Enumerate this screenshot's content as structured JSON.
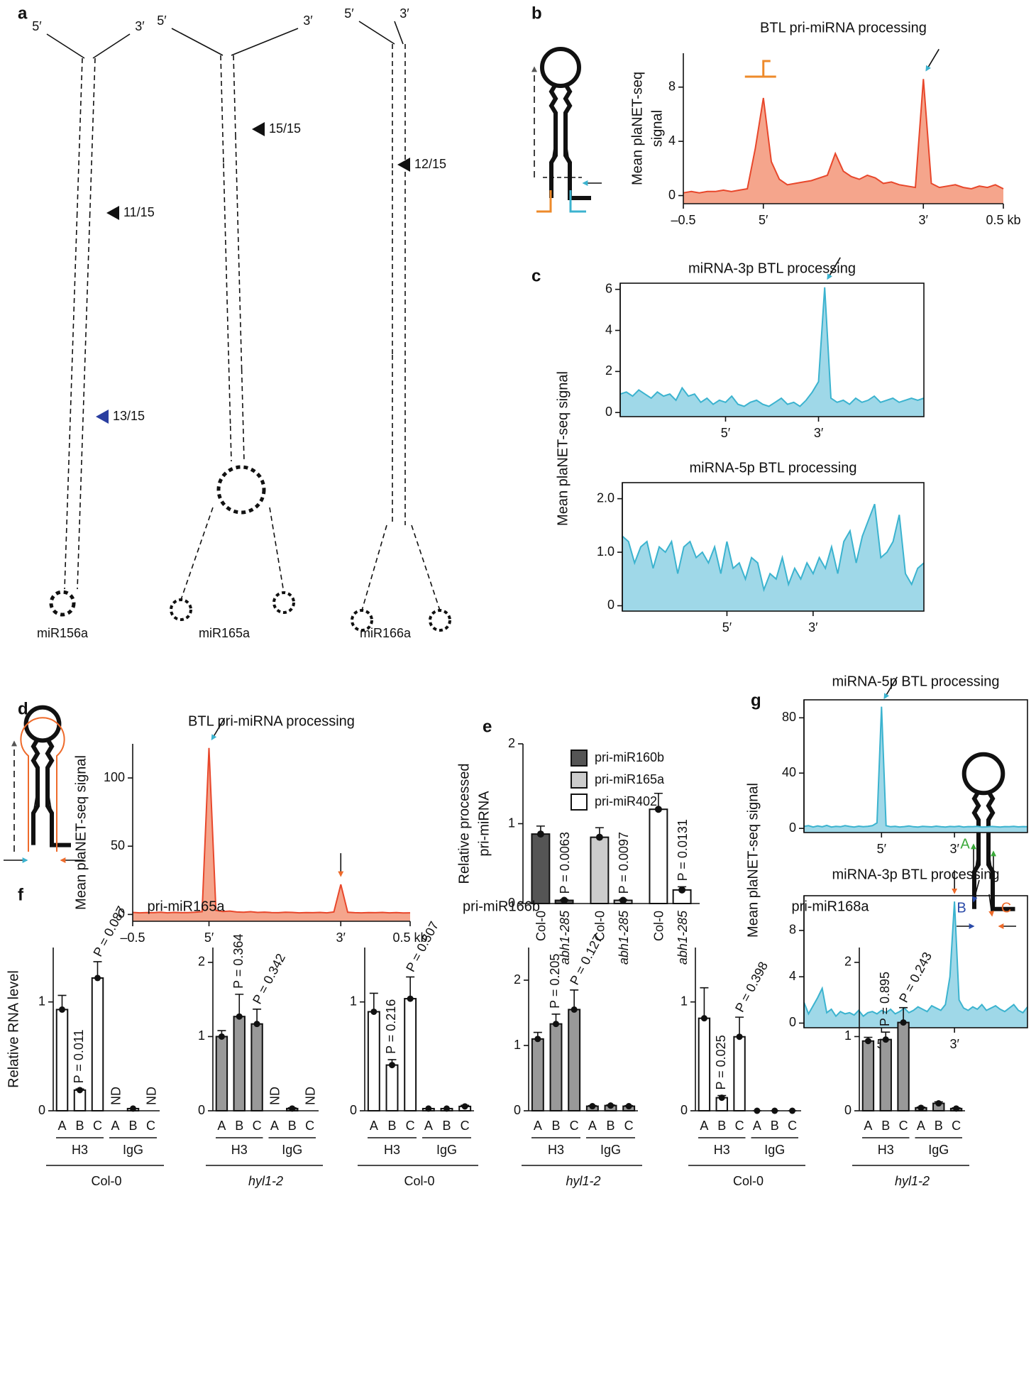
{
  "panel_labels": [
    "a",
    "b",
    "c",
    "d",
    "e",
    "f",
    "g"
  ],
  "structures": [
    {
      "name": "miR156a",
      "five_prime": "5′",
      "three_prime": "3′",
      "sites": [
        "11/15",
        "13/15"
      ]
    },
    {
      "name": "miR165a",
      "five_prime": "5′",
      "three_prime": "3′",
      "sites": [
        "15/15"
      ]
    },
    {
      "name": "miR166a",
      "five_prime": "5′",
      "three_prime": "3′",
      "sites": [
        "12/15"
      ]
    }
  ],
  "shared_ylabels": {
    "c": "Mean plaNET-seq signal",
    "g": "Mean plaNET-seq signal"
  },
  "schematic_f": {
    "primers": [
      "A",
      "B",
      "C"
    ]
  },
  "chart_data": [
    {
      "type": "area",
      "title": "BTL pri-miRNA processing",
      "ylabel": [
        "Mean plaNET-seq",
        "signal"
      ],
      "x": [
        -0.5,
        -0.475,
        -0.45,
        -0.425,
        -0.4,
        -0.375,
        -0.35,
        -0.325,
        -0.3,
        -0.275,
        -0.25,
        -0.225,
        -0.2,
        -0.175,
        -0.15,
        -0.125,
        -0.1,
        -0.075,
        -0.05,
        -0.025,
        0,
        0.025,
        0.05,
        0.075,
        0.1,
        0.125,
        0.15,
        0.175,
        0.2,
        0.225,
        0.25,
        0.275,
        0.3,
        0.325,
        0.35,
        0.375,
        0.4,
        0.425,
        0.45,
        0.475,
        0.5
      ],
      "values": [
        0.2,
        0.3,
        0.2,
        0.3,
        0.3,
        0.4,
        0.3,
        0.4,
        0.5,
        3.5,
        7.2,
        2.5,
        1.2,
        0.8,
        0.9,
        1.0,
        1.1,
        1.3,
        1.5,
        3.1,
        1.8,
        1.4,
        1.2,
        1.5,
        1.3,
        0.9,
        1.0,
        0.8,
        0.7,
        0.6,
        8.6,
        0.9,
        0.6,
        0.7,
        0.8,
        0.6,
        0.5,
        0.7,
        0.6,
        0.8,
        0.5
      ],
      "xlim": [
        -0.5,
        0.5
      ],
      "xticks": [
        {
          "value": -0.5,
          "label": "–0.5"
        },
        {
          "value": -0.25,
          "label": "5′"
        },
        {
          "value": 0.25,
          "label": "3′"
        },
        {
          "value": 0.5,
          "label": "0.5 kb"
        }
      ],
      "ylim": [
        -0.6,
        10.5
      ],
      "yticks": [
        0,
        4,
        8
      ],
      "color": "#e8472b",
      "fill": "#f5a58c",
      "frame": false
    },
    {
      "type": "area",
      "title": "miRNA-3p BTL processing",
      "values": [
        0.9,
        1.0,
        0.8,
        1.1,
        0.9,
        0.7,
        1.0,
        0.8,
        0.9,
        0.6,
        1.2,
        0.8,
        0.9,
        0.5,
        0.7,
        0.4,
        0.6,
        0.5,
        0.8,
        0.4,
        0.3,
        0.5,
        0.6,
        0.4,
        0.3,
        0.5,
        0.7,
        0.4,
        0.5,
        0.3,
        0.6,
        1.0,
        1.5,
        6.1,
        0.7,
        0.5,
        0.6,
        0.4,
        0.7,
        0.5,
        0.6,
        0.8,
        0.5,
        0.6,
        0.7,
        0.5,
        0.6,
        0.7,
        0.6,
        0.7
      ],
      "xticks": [
        {
          "value": 17,
          "label": "5′"
        },
        {
          "value": 32,
          "label": "3′"
        }
      ],
      "ylim": [
        -0.2,
        6.3
      ],
      "yticks": [
        0,
        2,
        4,
        6
      ],
      "color": "#3bb3cf",
      "fill": "#9fd8e8",
      "frame": true
    },
    {
      "type": "area",
      "title": "miRNA-5p BTL processing",
      "values": [
        1.3,
        1.2,
        0.8,
        1.1,
        1.2,
        0.7,
        1.1,
        1.0,
        1.2,
        0.6,
        1.1,
        1.2,
        0.9,
        1.0,
        0.8,
        1.1,
        0.6,
        1.2,
        0.7,
        0.8,
        0.5,
        0.9,
        0.8,
        0.3,
        0.6,
        0.5,
        0.9,
        0.4,
        0.7,
        0.5,
        0.8,
        0.6,
        0.9,
        0.7,
        1.1,
        0.6,
        1.2,
        1.4,
        0.8,
        1.3,
        1.6,
        1.9,
        0.9,
        1.0,
        1.2,
        1.7,
        0.6,
        0.4,
        0.7,
        0.8
      ],
      "xticks": [
        {
          "value": 17,
          "label": "5′"
        },
        {
          "value": 31,
          "label": "3′"
        }
      ],
      "ylim": [
        -0.1,
        2.3
      ],
      "yticks": [
        0,
        {
          "value": 1,
          "label": "1.0"
        },
        {
          "value": 2,
          "label": "2.0"
        }
      ],
      "color": "#3bb3cf",
      "fill": "#9fd8e8",
      "frame": true
    },
    {
      "type": "area",
      "title": "BTL pri-miRNA processing",
      "ylabel": [
        "Mean plaNET-seq signal"
      ],
      "x": [
        -0.5,
        -0.475,
        -0.45,
        -0.425,
        -0.4,
        -0.375,
        -0.35,
        -0.325,
        -0.3,
        -0.275,
        -0.25,
        -0.225,
        -0.2,
        -0.175,
        -0.15,
        -0.125,
        -0.1,
        -0.075,
        -0.05,
        -0.025,
        0,
        0.025,
        0.05,
        0.075,
        0.1,
        0.125,
        0.15,
        0.175,
        0.2,
        0.225,
        0.25,
        0.275,
        0.3,
        0.325,
        0.35,
        0.375,
        0.4,
        0.425,
        0.45,
        0.475,
        0.5
      ],
      "values": [
        1.5,
        1.2,
        1.4,
        1.3,
        1.6,
        1.2,
        1.5,
        1.3,
        1.4,
        1.6,
        2.0,
        122,
        3.0,
        2.2,
        2.5,
        1.8,
        1.6,
        2.0,
        1.5,
        1.7,
        1.4,
        1.3,
        1.6,
        1.5,
        1.2,
        1.4,
        1.3,
        1.5,
        1.2,
        1.8,
        22,
        1.6,
        1.3,
        1.2,
        1.4,
        1.3,
        1.5,
        1.2,
        1.4,
        1.1,
        1.2
      ],
      "xlim": [
        -0.5,
        0.5
      ],
      "xticks": [
        {
          "value": -0.5,
          "label": "–0.5"
        },
        {
          "value": -0.225,
          "label": "5′"
        },
        {
          "value": 0.25,
          "label": "3′"
        },
        {
          "value": 0.5,
          "label": "0.5 kb"
        }
      ],
      "ylim": [
        -5,
        125
      ],
      "yticks": [
        0,
        50,
        100
      ],
      "color": "#e8472b",
      "fill": "#f5a58c",
      "frame": false
    },
    {
      "type": "area",
      "title": "miRNA-5p BTL processing",
      "values": [
        1.5,
        2,
        1,
        1.8,
        1.2,
        2.2,
        1,
        1.5,
        1.2,
        2,
        1.4,
        1,
        1.6,
        1.2,
        1.5,
        2,
        4,
        88,
        2,
        1.2,
        1.5,
        1,
        1.3,
        1.8,
        1.2,
        1,
        1.5,
        1.3,
        1.1,
        1.6,
        1.2,
        1,
        1.4,
        1.2,
        1.6,
        1,
        1.3,
        1.2,
        1.5,
        1,
        1.1,
        1.4,
        1.2,
        1,
        1.3,
        1.2,
        1.5,
        1.1,
        1.3,
        1.2
      ],
      "xticks": [
        {
          "value": 17,
          "label": "5′"
        },
        {
          "value": 33,
          "label": "3′"
        }
      ],
      "ylim": [
        -3,
        93
      ],
      "yticks": [
        0,
        40,
        80
      ],
      "color": "#3bb3cf",
      "fill": "#9fd8e8",
      "frame": true
    },
    {
      "type": "area",
      "title": "miRNA-3p BTL processing",
      "values": [
        1.8,
        0.8,
        1.5,
        2.2,
        3.0,
        0.9,
        1.2,
        0.6,
        1.0,
        0.8,
        0.9,
        0.7,
        1.1,
        0.6,
        0.9,
        1.0,
        0.8,
        1.1,
        0.9,
        1.2,
        0.8,
        1.0,
        1.3,
        0.9,
        1.1,
        1.4,
        1.2,
        1.0,
        1.5,
        1.3,
        1.1,
        1.6,
        4.0,
        10.5,
        2.0,
        1.3,
        1.1,
        1.4,
        1.2,
        1.6,
        1.1,
        1.3,
        1.5,
        1.2,
        1.0,
        1.3,
        1.6,
        1.1,
        0.9,
        1.4
      ],
      "xticks": [
        {
          "value": 17,
          "label": "5′"
        },
        {
          "value": 33,
          "label": "3′"
        }
      ],
      "ylim": [
        -0.4,
        11
      ],
      "yticks": [
        0,
        4,
        8
      ],
      "color": "#3bb3cf",
      "fill": "#9fd8e8",
      "frame": true
    },
    {
      "type": "grouped_bar",
      "ylabel": [
        "Relative processed",
        "pri-miRNA"
      ],
      "categories": [
        "Col-0",
        "abh1-285"
      ],
      "series": [
        {
          "name": "pri-miR160b",
          "color": "#555555",
          "values": [
            0.87,
            0.04
          ],
          "errors": [
            0.1,
            0.01
          ],
          "p_label": "P = 0.0063"
        },
        {
          "name": "pri-miR165a",
          "color": "#cccccc",
          "values": [
            0.83,
            0.04
          ],
          "errors": [
            0.12,
            0.01
          ],
          "p_label": "P = 0.0097"
        },
        {
          "name": "pri-miR402",
          "color": "#ffffff",
          "values": [
            1.18,
            0.17
          ],
          "errors": [
            0.2,
            0.04
          ],
          "p_label": "P = 0.0131"
        }
      ],
      "ylim": [
        0,
        2
      ],
      "yticks": [
        0,
        1,
        2
      ],
      "legend": "top-right"
    },
    {
      "type": "bar",
      "title": "pri-miR165a",
      "ylabel": "Relative RNA level",
      "categories": [
        "A",
        "B",
        "C",
        "A",
        "B",
        "C"
      ],
      "groups": [
        "H3",
        "IgG"
      ],
      "genotype": "Col-0",
      "values": [
        0.93,
        0.19,
        1.22,
        null,
        0.02,
        null
      ],
      "errors": [
        0.13,
        0.01,
        0.15,
        null,
        0,
        null
      ],
      "value_labels": [
        null,
        null,
        null,
        "ND",
        null,
        "ND"
      ],
      "p_labels": [
        null,
        "P = 0.011",
        "P = 0.087",
        null,
        null,
        null
      ],
      "color": "#ffffff",
      "ylim": [
        0,
        1.5
      ],
      "yticks": [
        0,
        1
      ]
    },
    {
      "type": "bar",
      "categories": [
        "A",
        "B",
        "C",
        "A",
        "B",
        "C"
      ],
      "groups": [
        "H3",
        "IgG"
      ],
      "genotype": "hyl1-2",
      "values": [
        1.0,
        1.27,
        1.17,
        null,
        0.03,
        null
      ],
      "errors": [
        0.08,
        0.3,
        0.2,
        null,
        0.01,
        null
      ],
      "value_labels": [
        null,
        null,
        null,
        "ND",
        null,
        "ND"
      ],
      "p_labels": [
        null,
        "P = 0.364",
        "P = 0.342",
        null,
        null,
        null
      ],
      "color": "#999999",
      "ylim": [
        0,
        2.2
      ],
      "yticks": [
        0,
        1,
        2
      ]
    },
    {
      "type": "bar",
      "title": "pri-miR166b",
      "categories": [
        "A",
        "B",
        "C",
        "A",
        "B",
        "C"
      ],
      "groups": [
        "H3",
        "IgG"
      ],
      "genotype": "Col-0",
      "values": [
        0.91,
        0.42,
        1.03,
        0.02,
        0.02,
        0.04
      ],
      "errors": [
        0.17,
        0.05,
        0.2,
        0,
        0,
        0.01
      ],
      "p_labels": [
        null,
        "P = 0.216",
        "P = 0.507",
        null,
        null,
        null
      ],
      "color": "#ffffff",
      "ylim": [
        0,
        1.5
      ],
      "yticks": [
        0,
        1
      ]
    },
    {
      "type": "bar",
      "categories": [
        "A",
        "B",
        "C",
        "A",
        "B",
        "C"
      ],
      "groups": [
        "H3",
        "IgG"
      ],
      "genotype": "hyl1-2",
      "values": [
        1.1,
        1.33,
        1.55,
        0.07,
        0.08,
        0.07
      ],
      "errors": [
        0.1,
        0.15,
        0.3,
        0.01,
        0.01,
        0.01
      ],
      "p_labels": [
        null,
        "P = 0.205",
        "P = 0.127",
        null,
        null,
        null
      ],
      "color": "#999999",
      "ylim": [
        0,
        2.5
      ],
      "yticks": [
        0,
        1,
        2
      ]
    },
    {
      "type": "bar",
      "title": "pri-miR168a",
      "categories": [
        "A",
        "B",
        "C",
        "A",
        "B",
        "C"
      ],
      "groups": [
        "H3",
        "IgG"
      ],
      "genotype": "Col-0",
      "values": [
        0.85,
        0.12,
        0.68,
        0,
        0,
        0
      ],
      "errors": [
        0.28,
        0.02,
        0.18,
        0,
        0,
        0
      ],
      "p_labels": [
        null,
        "P = 0.025",
        "P = 0.398",
        null,
        null,
        null
      ],
      "color": "#ffffff",
      "ylim": [
        0,
        1.5
      ],
      "yticks": [
        0,
        1
      ]
    },
    {
      "type": "bar",
      "categories": [
        "A",
        "B",
        "C",
        "A",
        "B",
        "C"
      ],
      "groups": [
        "H3",
        "IgG"
      ],
      "genotype": "hyl1-2",
      "values": [
        0.94,
        0.96,
        1.19,
        0.04,
        0.1,
        0.03
      ],
      "errors": [
        0.05,
        0.1,
        0.2,
        0.01,
        0.02,
        0.01
      ],
      "p_labels": [
        null,
        "P = 0.895",
        "P = 0.243",
        null,
        null,
        null
      ],
      "color": "#999999",
      "ylim": [
        0,
        2.2
      ],
      "yticks": [
        0,
        1,
        2
      ]
    }
  ]
}
